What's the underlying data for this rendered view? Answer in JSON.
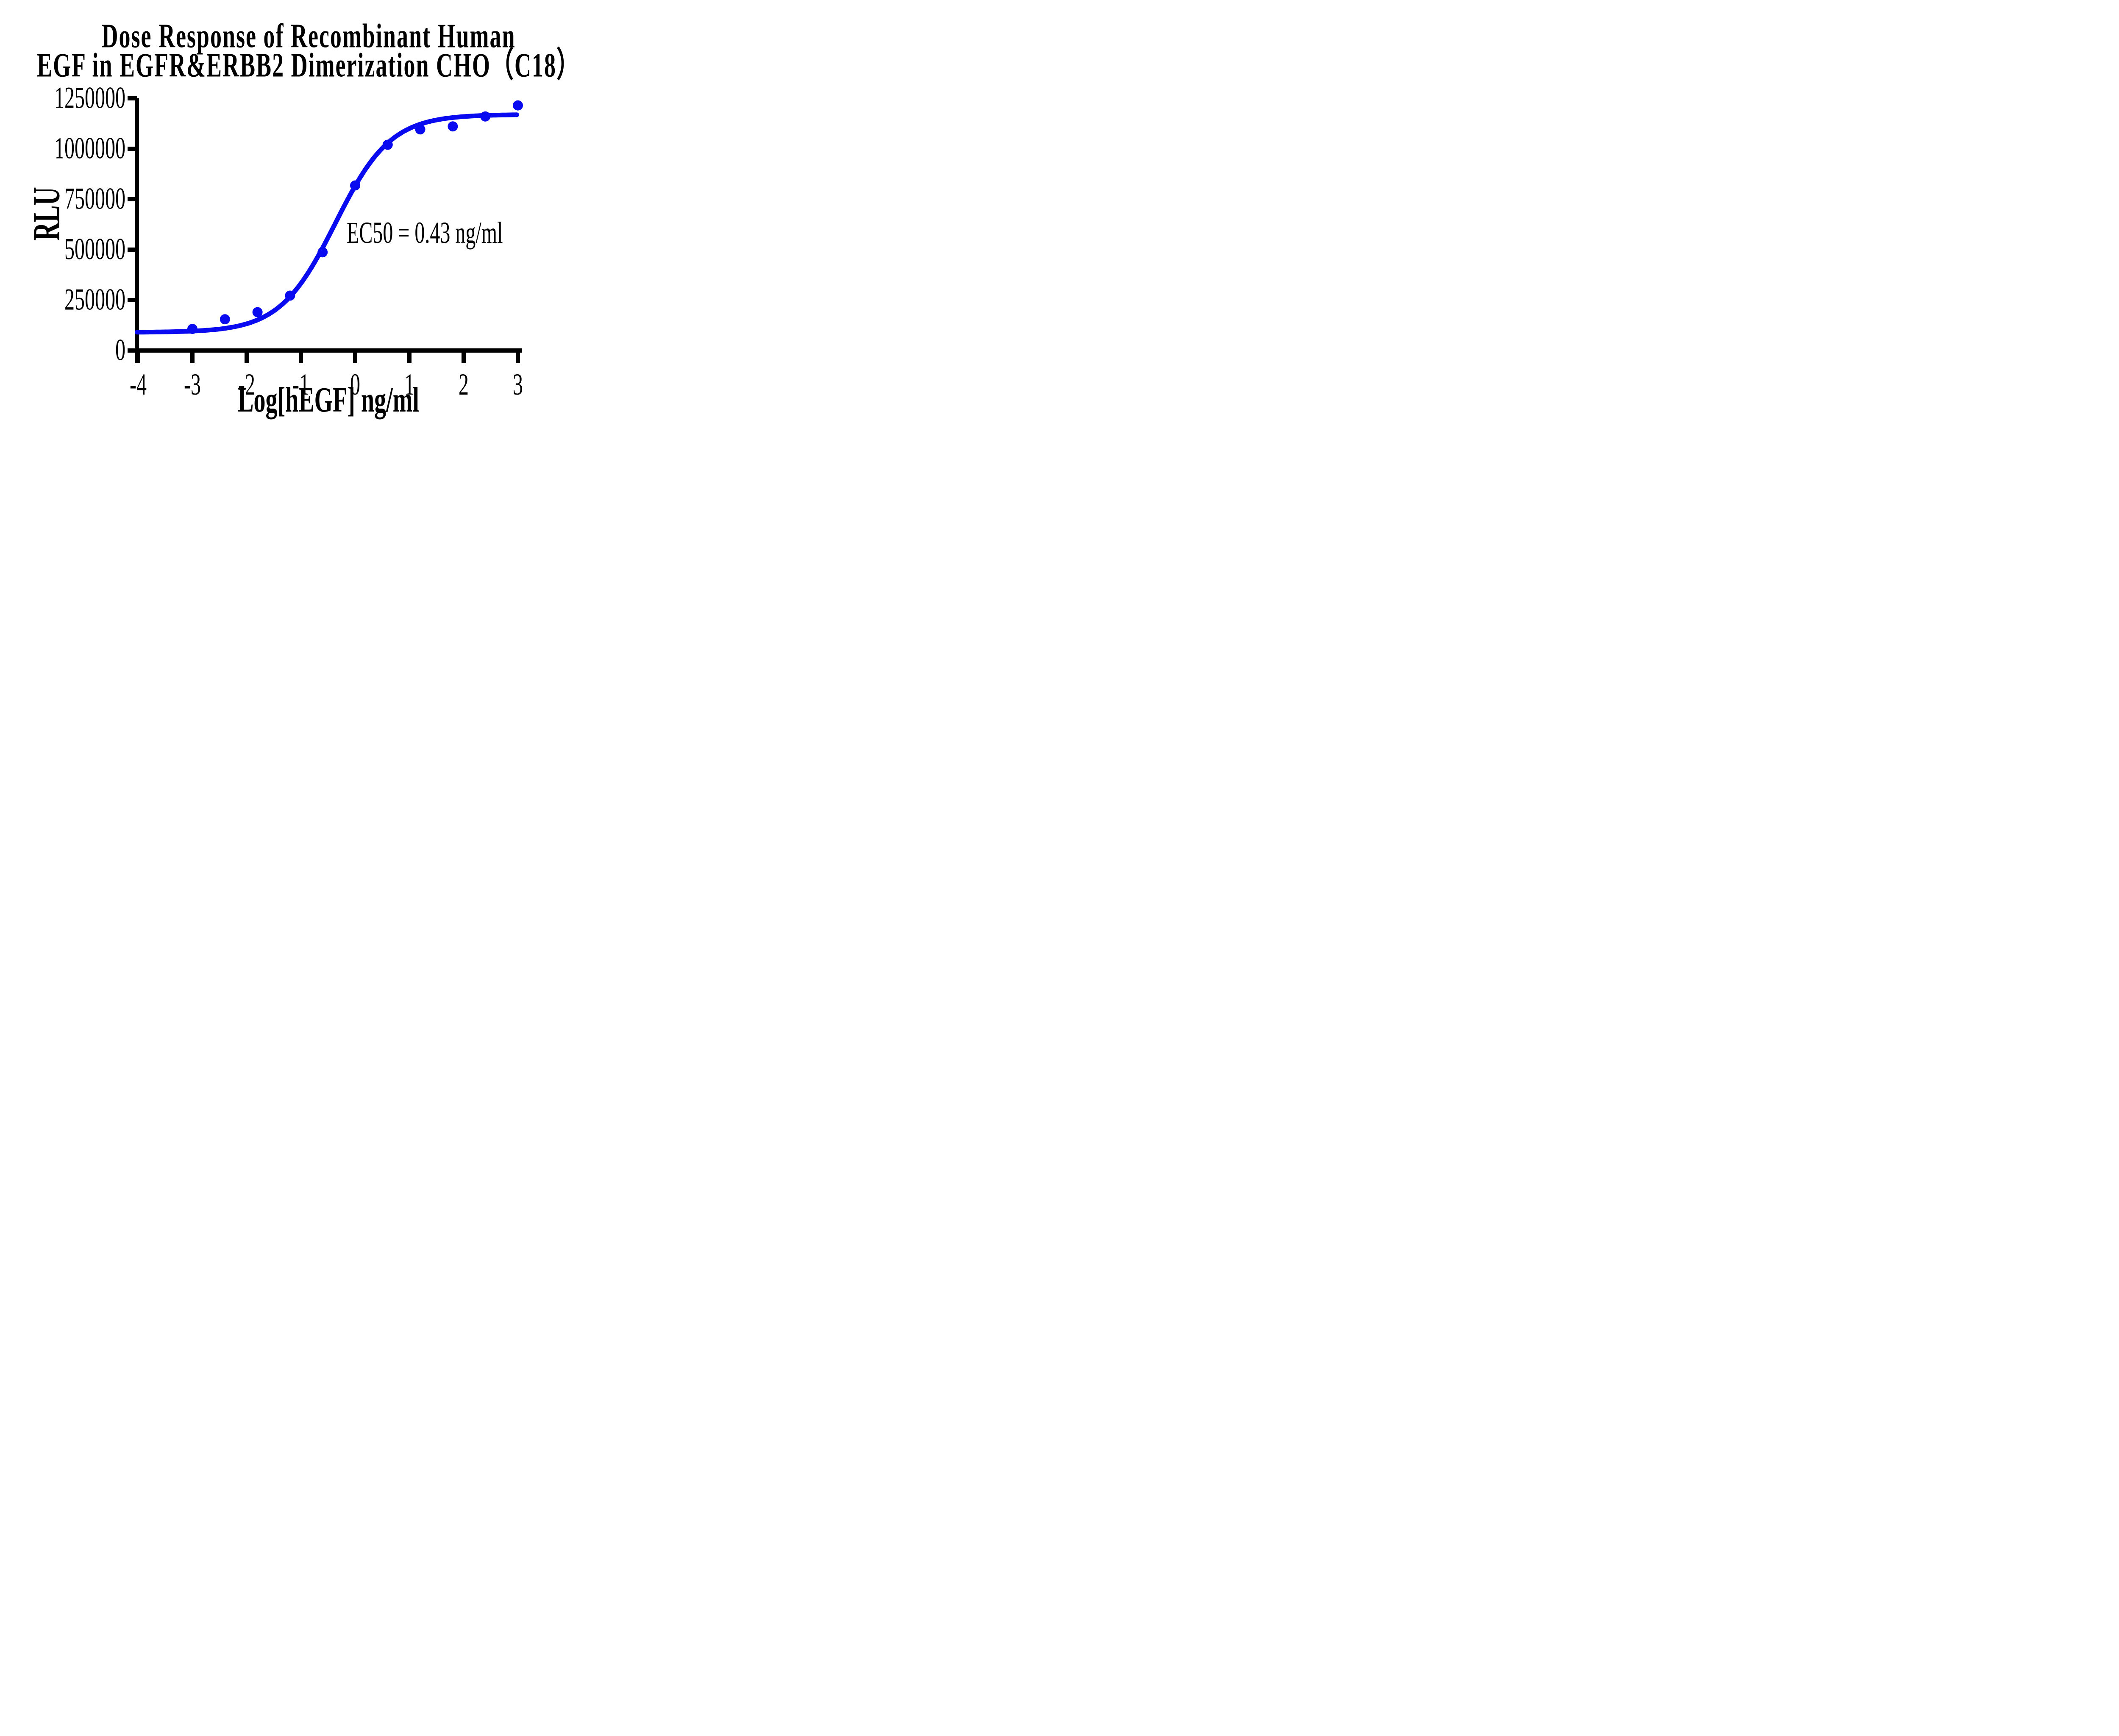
{
  "figure": {
    "title_line1": "Dose Response of Recombinant Human",
    "title_line2": "EGF in EGFR&ERBB2 Dimerization CHO（C18）",
    "y_axis_label": "RLU",
    "x_axis_label": "Log[hEGF] ng/ml",
    "annotation": "EC50 = 0.43 ng/ml"
  },
  "chart_data": {
    "type": "scatter",
    "title": "Dose Response of Recombinant Human EGF in EGFR&ERBB2 Dimerization CHO（C18）",
    "xlabel": "Log[hEGF] ng/ml",
    "ylabel": "RLU",
    "x": [
      -3,
      -2.4,
      -1.8,
      -1.2,
      -0.6,
      0,
      0.6,
      1.2,
      1.8,
      2.4,
      3
    ],
    "y": [
      107000,
      155000,
      190000,
      272000,
      487000,
      818000,
      1020000,
      1096000,
      1111000,
      1160000,
      1215000
    ],
    "x_ticks": [
      -4,
      -3,
      -2,
      -1,
      0,
      1,
      2,
      3
    ],
    "y_ticks": [
      0,
      250000,
      500000,
      750000,
      1000000,
      1250000
    ],
    "xlim": [
      -4,
      3
    ],
    "ylim": [
      0,
      1250000
    ],
    "grid": false,
    "legend": "none",
    "marker": "circle",
    "annotation": "EC50 = 0.43 ng/ml",
    "ec50_ng_ml": 0.43,
    "fit_curve": {
      "model": "four_parameter_logistic",
      "bottom": 90000,
      "top": 1170000,
      "log_ec50": -0.3665,
      "hill_slope": 0.85
    },
    "series_color": "#0a0af0",
    "axis_color": "#000000"
  }
}
